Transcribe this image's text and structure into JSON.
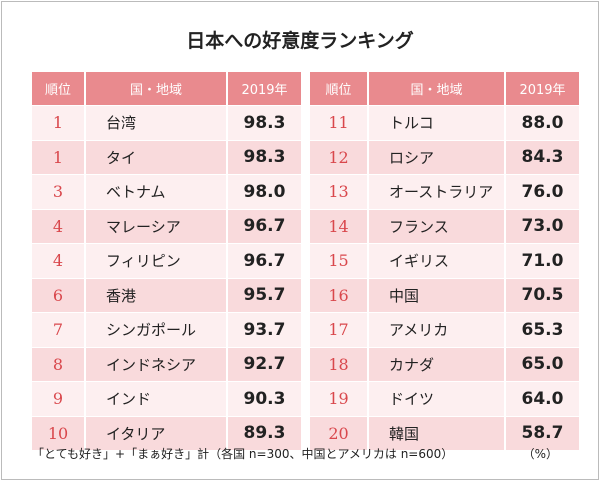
{
  "title": "日本への好意度ランキング",
  "tables": [
    {
      "header": [
        "順位",
        "国・地域",
        "2019年"
      ],
      "rows": [
        [
          "1",
          "台湾",
          "98.3"
        ],
        [
          "1",
          "タイ",
          "98.3"
        ],
        [
          "3",
          "ベトナム",
          "98.0"
        ],
        [
          "4",
          "マレーシア",
          "96.7"
        ],
        [
          "4",
          "フィリピン",
          "96.7"
        ],
        [
          "6",
          "香港",
          "95.7"
        ],
        [
          "7",
          "シンガポール",
          "93.7"
        ],
        [
          "8",
          "インドネシア",
          "92.7"
        ],
        [
          "9",
          "インド",
          "90.3"
        ],
        [
          "10",
          "イタリア",
          "89.3"
        ]
      ]
    },
    {
      "header": [
        "順位",
        "国・地域",
        "2019年"
      ],
      "rows": [
        [
          "11",
          "トルコ",
          "88.0"
        ],
        [
          "12",
          "ロシア",
          "84.3"
        ],
        [
          "13",
          "オーストラリア",
          "76.0"
        ],
        [
          "14",
          "フランス",
          "73.0"
        ],
        [
          "15",
          "イギリス",
          "71.0"
        ],
        [
          "16",
          "中国",
          "70.5"
        ],
        [
          "17",
          "アメリカ",
          "65.3"
        ],
        [
          "18",
          "カナダ",
          "65.0"
        ],
        [
          "19",
          "ドイツ",
          "64.0"
        ],
        [
          "20",
          "韓国",
          "58.7"
        ]
      ]
    }
  ],
  "note": "「とても好き」+「まぁ好き」計（各国 n=300、中国とアメリカは n=600）",
  "unit": "（%）"
}
